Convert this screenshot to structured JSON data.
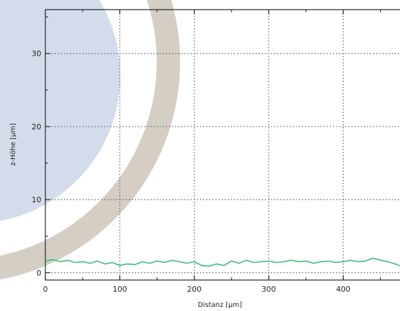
{
  "chart_data": {
    "type": "line",
    "title": "",
    "xlabel": "Distanz [µm]",
    "ylabel": "z-Höhe [µm]",
    "xlim": [
      0,
      480
    ],
    "ylim": [
      -1,
      36
    ],
    "x_ticks": [
      0,
      100,
      200,
      300,
      400
    ],
    "y_ticks": [
      0,
      10,
      20,
      30
    ],
    "grid": true,
    "colors": {
      "line": "#3cb878",
      "grid": "#555555",
      "axis": "#222222"
    },
    "series": [
      {
        "x": [
          0,
          10,
          20,
          30,
          40,
          50,
          60,
          70,
          80,
          90,
          100,
          110,
          120,
          130,
          140,
          150,
          160,
          170,
          180,
          190,
          200,
          210,
          220,
          230,
          240,
          250,
          260,
          270,
          280,
          290,
          300,
          310,
          320,
          330,
          340,
          350,
          360,
          370,
          380,
          390,
          400,
          410,
          420,
          430,
          440,
          450,
          460,
          470,
          480
        ],
        "y": [
          1.6,
          1.8,
          1.5,
          1.7,
          1.4,
          1.5,
          1.3,
          1.6,
          1.2,
          1.4,
          1.0,
          1.2,
          1.1,
          1.5,
          1.3,
          1.6,
          1.4,
          1.7,
          1.5,
          1.3,
          1.5,
          1.0,
          0.9,
          1.2,
          1.0,
          1.6,
          1.3,
          1.7,
          1.4,
          1.5,
          1.6,
          1.4,
          1.5,
          1.7,
          1.5,
          1.6,
          1.3,
          1.5,
          1.6,
          1.4,
          1.5,
          1.7,
          1.5,
          1.6,
          2.0,
          1.7,
          1.5,
          1.2,
          0.8
        ]
      }
    ]
  }
}
